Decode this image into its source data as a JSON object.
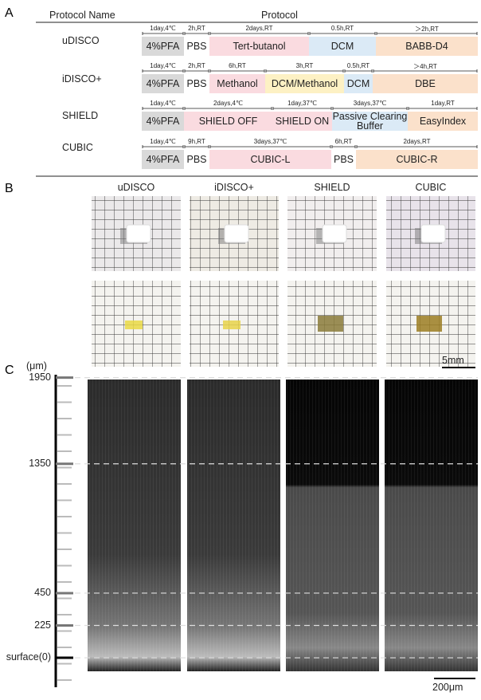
{
  "panel_a": {
    "label": "A",
    "header": {
      "name": "Protocol Name",
      "protocol": "Protocol"
    },
    "protocols": [
      {
        "name": "uDISCO",
        "steps": [
          {
            "reagent": "4%PFA",
            "condition": "1day,4℃",
            "color": "#d9d9d9"
          },
          {
            "reagent": "PBS",
            "condition": "2h,RT",
            "color": "#ffffff"
          },
          {
            "reagent": "Tert-butanol",
            "condition": "2days,RT",
            "color": "#fadbe0"
          },
          {
            "reagent": "DCM",
            "condition": "0.5h,RT",
            "color": "#dbeaf6"
          },
          {
            "reagent": "BABB-D4",
            "condition": "＞2h,RT",
            "color": "#fbe1cb"
          }
        ]
      },
      {
        "name": "iDISCO+",
        "steps": [
          {
            "reagent": "4%PFA",
            "condition": "1day,4℃",
            "color": "#d9d9d9"
          },
          {
            "reagent": "PBS",
            "condition": "2h,RT",
            "color": "#ffffff"
          },
          {
            "reagent": "Methanol",
            "condition": "6h,RT",
            "color": "#fadbe0"
          },
          {
            "reagent": "DCM/Methanol",
            "condition": "3h,RT",
            "color": "#fdf1c4"
          },
          {
            "reagent": "DCM",
            "condition": "0.5h,RT",
            "color": "#dbeaf6"
          },
          {
            "reagent": "DBE",
            "condition": "＞4h,RT",
            "color": "#fbe1cb"
          }
        ]
      },
      {
        "name": "SHIELD",
        "steps": [
          {
            "reagent": "4%PFA",
            "condition": "1day,4℃",
            "color": "#d9d9d9"
          },
          {
            "reagent": "SHIELD OFF",
            "condition": "2days,4℃",
            "color": "#fadbe0"
          },
          {
            "reagent": "SHIELD ON",
            "condition": "1day,37℃",
            "color": "#fadbe0"
          },
          {
            "reagent": "Passive Clearing Buffer",
            "condition": "3days,37℃",
            "color": "#dbeaf6"
          },
          {
            "reagent": "EasyIndex",
            "condition": "1day,RT",
            "color": "#fbe1cb"
          }
        ]
      },
      {
        "name": "CUBIC",
        "steps": [
          {
            "reagent": "4%PFA",
            "condition": "1day,4℃",
            "color": "#d9d9d9"
          },
          {
            "reagent": "PBS",
            "condition": "9h,RT",
            "color": "#ffffff"
          },
          {
            "reagent": "CUBIC-L",
            "condition": "3days,37℃",
            "color": "#fadbe0"
          },
          {
            "reagent": "PBS",
            "condition": "6h,RT",
            "color": "#ffffff"
          },
          {
            "reagent": "CUBIC-R",
            "condition": "2days,RT",
            "color": "#fbe1cb"
          }
        ]
      }
    ]
  },
  "panel_b": {
    "label": "B",
    "columns": [
      "uDISCO",
      "iDISCO+",
      "SHIELD",
      "CUBIC"
    ],
    "scale_bar": "5mm"
  },
  "panel_c": {
    "label": "C",
    "unit": "(μm)",
    "depth_axis": {
      "ylim": [
        -205,
        1970
      ],
      "yticks": [
        {
          "value": 0,
          "label": "surface(0)"
        },
        225,
        450,
        1350,
        1950
      ]
    },
    "scale_bar": "200μm"
  }
}
